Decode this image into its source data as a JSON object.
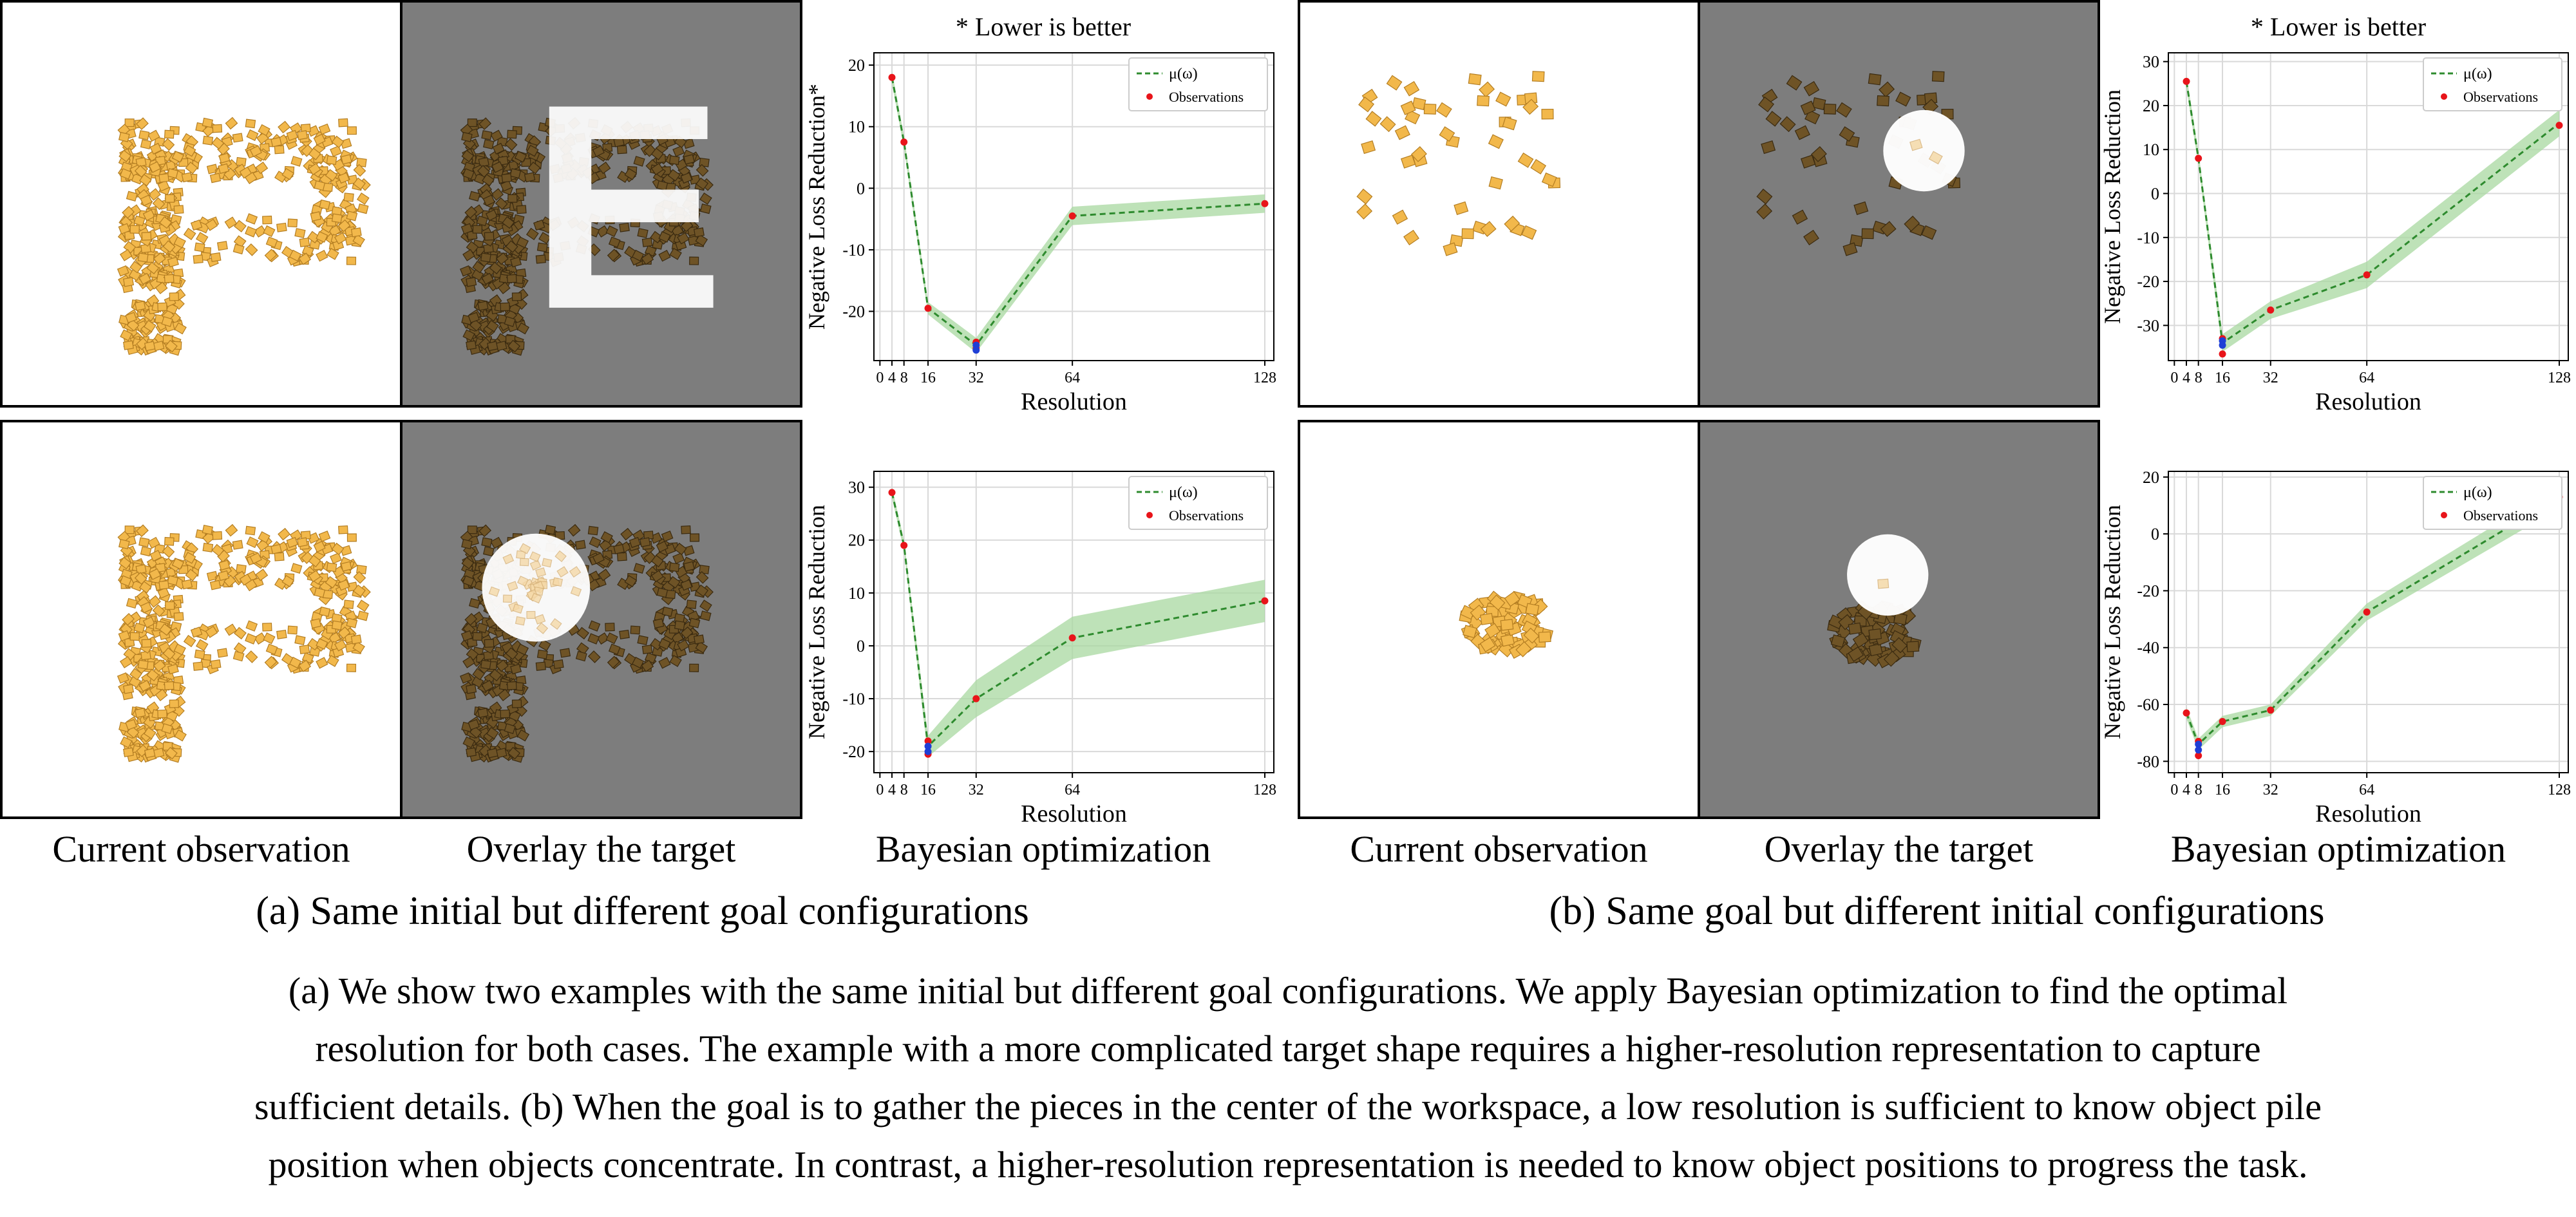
{
  "labels": {
    "current_observation": "Current observation",
    "overlay_target": "Overlay the target",
    "bayesian_optimization": "Bayesian optimization",
    "lower_is_better": "* Lower is better"
  },
  "subcaptions": {
    "a": "(a) Same initial but different goal configurations",
    "b": "(b) Same goal but different initial configurations"
  },
  "caption": {
    "lines": [
      "(a) We show two examples with the same initial but different goal configurations. We apply Bayesian optimization to find the optimal",
      "resolution for both cases. The example with a more complicated target shape requires a higher-resolution representation to capture",
      "sufficient details. (b) When the goal is to gather the pieces in the center of the workspace, a low resolution is sufficient to know object pile",
      "position when objects concentrate. In contrast, a higher-resolution representation is needed to know object positions to progress the task."
    ]
  },
  "scenes": {
    "overlay_letter": "E"
  },
  "colors": {
    "piece": "#f2b84b",
    "piece_dark": "#6e5326",
    "overlay_bg": "#7d7d7d",
    "mean_line": "#2e8b2e",
    "band": "#a8d8a0",
    "observation": "#e8141a",
    "best": "#1f3fd6"
  },
  "chart_data": [
    {
      "type": "line",
      "title": "* Lower is better",
      "xlabel": "Resolution",
      "ylabel": "Negative Loss Reduction*",
      "xticks": [
        0,
        4,
        8,
        16,
        32,
        64,
        128
      ],
      "yticks": [
        -20,
        -10,
        0,
        10,
        20
      ],
      "xlim": [
        -2,
        131
      ],
      "ylim": [
        -28,
        22
      ],
      "legend": {
        "position": "top-right",
        "entries": [
          "μ(ω)",
          "Observations"
        ]
      },
      "grid": true,
      "series": [
        {
          "name": "μ(ω)",
          "x": [
            4,
            8,
            16,
            32,
            64,
            128
          ],
          "values": [
            18,
            7.5,
            -19.5,
            -25.5,
            -4.5,
            -2.5
          ],
          "band": [
            1,
            1,
            1,
            1.2,
            1.5,
            1.5
          ]
        },
        {
          "name": "Observations",
          "x": [
            4,
            8,
            16,
            32,
            32,
            64,
            128
          ],
          "values": [
            18,
            7.5,
            -19.5,
            -25,
            -26,
            -4.5,
            -2.5
          ]
        }
      ],
      "best": {
        "x": 32,
        "values": [
          -25.5,
          -26.3
        ]
      }
    },
    {
      "type": "line",
      "title": "* Lower is better",
      "xlabel": "Resolution",
      "ylabel": "Negative Loss Reduction",
      "xticks": [
        0,
        4,
        8,
        16,
        32,
        64,
        128
      ],
      "yticks": [
        -30,
        -20,
        -10,
        0,
        10,
        20,
        30
      ],
      "xlim": [
        -2,
        131
      ],
      "ylim": [
        -38,
        32
      ],
      "legend": {
        "position": "top-right",
        "entries": [
          "μ(ω)",
          "Observations"
        ]
      },
      "grid": true,
      "series": [
        {
          "name": "μ(ω)",
          "x": [
            4,
            8,
            16,
            32,
            64,
            128
          ],
          "values": [
            25.5,
            8,
            -34,
            -26.5,
            -18.5,
            16
          ],
          "band": [
            1.5,
            1.5,
            2,
            2,
            3,
            3
          ]
        },
        {
          "name": "Observations",
          "x": [
            4,
            8,
            16,
            16,
            32,
            64,
            128
          ],
          "values": [
            25.5,
            8,
            -33,
            -36.5,
            -26.5,
            -18.5,
            15.5
          ]
        }
      ],
      "best": {
        "x": 16,
        "values": [
          -33.5,
          -34.5
        ]
      }
    },
    {
      "type": "line",
      "title": "",
      "xlabel": "Resolution",
      "ylabel": "Negative Loss Reduction",
      "xticks": [
        0,
        4,
        8,
        16,
        32,
        64,
        128
      ],
      "yticks": [
        -20,
        -10,
        0,
        10,
        20,
        30
      ],
      "xlim": [
        -2,
        131
      ],
      "ylim": [
        -24,
        33
      ],
      "legend": {
        "position": "top-right",
        "entries": [
          "μ(ω)",
          "Observations"
        ]
      },
      "grid": true,
      "series": [
        {
          "name": "μ(ω)",
          "x": [
            4,
            8,
            16,
            32,
            64,
            128
          ],
          "values": [
            29,
            19,
            -19,
            -10,
            1.5,
            8.5
          ],
          "band": [
            1,
            1,
            2,
            3.5,
            4,
            4
          ]
        },
        {
          "name": "Observations",
          "x": [
            4,
            8,
            16,
            16,
            32,
            64,
            128
          ],
          "values": [
            29,
            19,
            -18,
            -20.5,
            -10,
            1.5,
            8.5
          ]
        }
      ],
      "best": {
        "x": 16,
        "values": [
          -19,
          -20
        ]
      }
    },
    {
      "type": "line",
      "title": "",
      "xlabel": "Resolution",
      "ylabel": "Negative Loss Reduction",
      "xticks": [
        0,
        4,
        8,
        16,
        32,
        64,
        128
      ],
      "yticks": [
        -80,
        -60,
        -40,
        -20,
        0,
        20
      ],
      "xlim": [
        -2,
        131
      ],
      "ylim": [
        -84,
        22
      ],
      "legend": {
        "position": "top-right",
        "entries": [
          "μ(ω)",
          "Observations"
        ]
      },
      "grid": true,
      "series": [
        {
          "name": "μ(ω)",
          "x": [
            4,
            8,
            16,
            32,
            64,
            128
          ],
          "values": [
            -63,
            -74,
            -66,
            -62,
            -27.5,
            13
          ],
          "band": [
            2,
            2,
            2,
            2,
            3,
            4
          ]
        },
        {
          "name": "Observations",
          "x": [
            4,
            8,
            8,
            16,
            32,
            64,
            128
          ],
          "values": [
            -63,
            -73,
            -78,
            -66,
            -62,
            -27.5,
            13
          ]
        }
      ],
      "best": {
        "x": 8,
        "values": [
          -74,
          -76
        ]
      }
    }
  ]
}
